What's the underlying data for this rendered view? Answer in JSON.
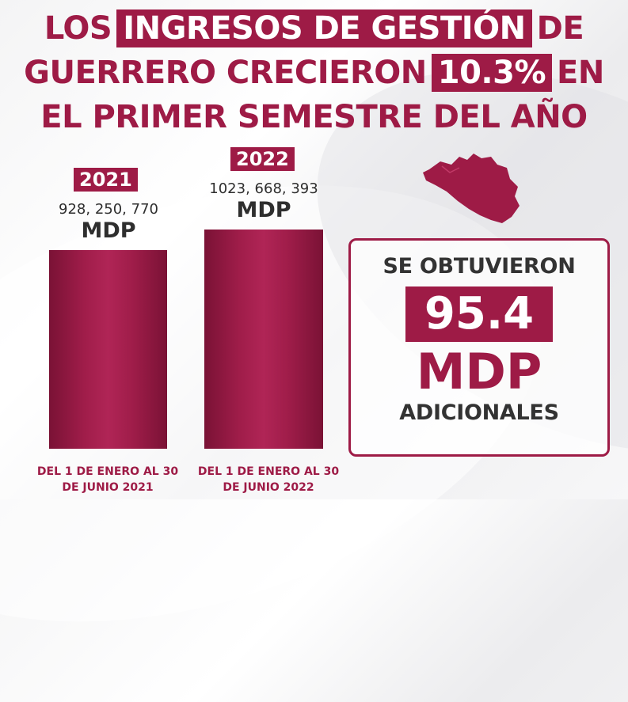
{
  "headline": {
    "line1_pre": "LOS",
    "line1_highlight": "INGRESOS DE GESTIÓN",
    "line1_post": "DE",
    "line2_pre": "GUERRERO CRECIERON",
    "line2_highlight": "10.3%",
    "line2_post": "EN",
    "line3": "EL PRIMER SEMESTRE DEL AÑO"
  },
  "callout": {
    "top_text": "SE OBTUVIERON",
    "number": "95.4",
    "unit": "MDP",
    "bottom_text": "ADICIONALES"
  },
  "colors": {
    "accent": "#9e1b46",
    "text_dark": "#333333"
  },
  "icons": {
    "map": "guerrero-state-map-icon"
  },
  "chart_data": {
    "type": "bar",
    "categories": [
      "2021",
      "2022"
    ],
    "values": [
      928250770,
      1023668393
    ],
    "value_labels": [
      "928, 250, 770",
      "1023, 668, 393"
    ],
    "unit": "MDP",
    "period_labels": [
      "DEL 1 DE ENERO AL 30 DE JUNIO 2021",
      "DEL 1 DE ENERO AL 30 DE JUNIO 2022"
    ],
    "title": "",
    "xlabel": "",
    "ylabel": "",
    "ylim": [
      0,
      1100000000
    ],
    "grid": false
  }
}
